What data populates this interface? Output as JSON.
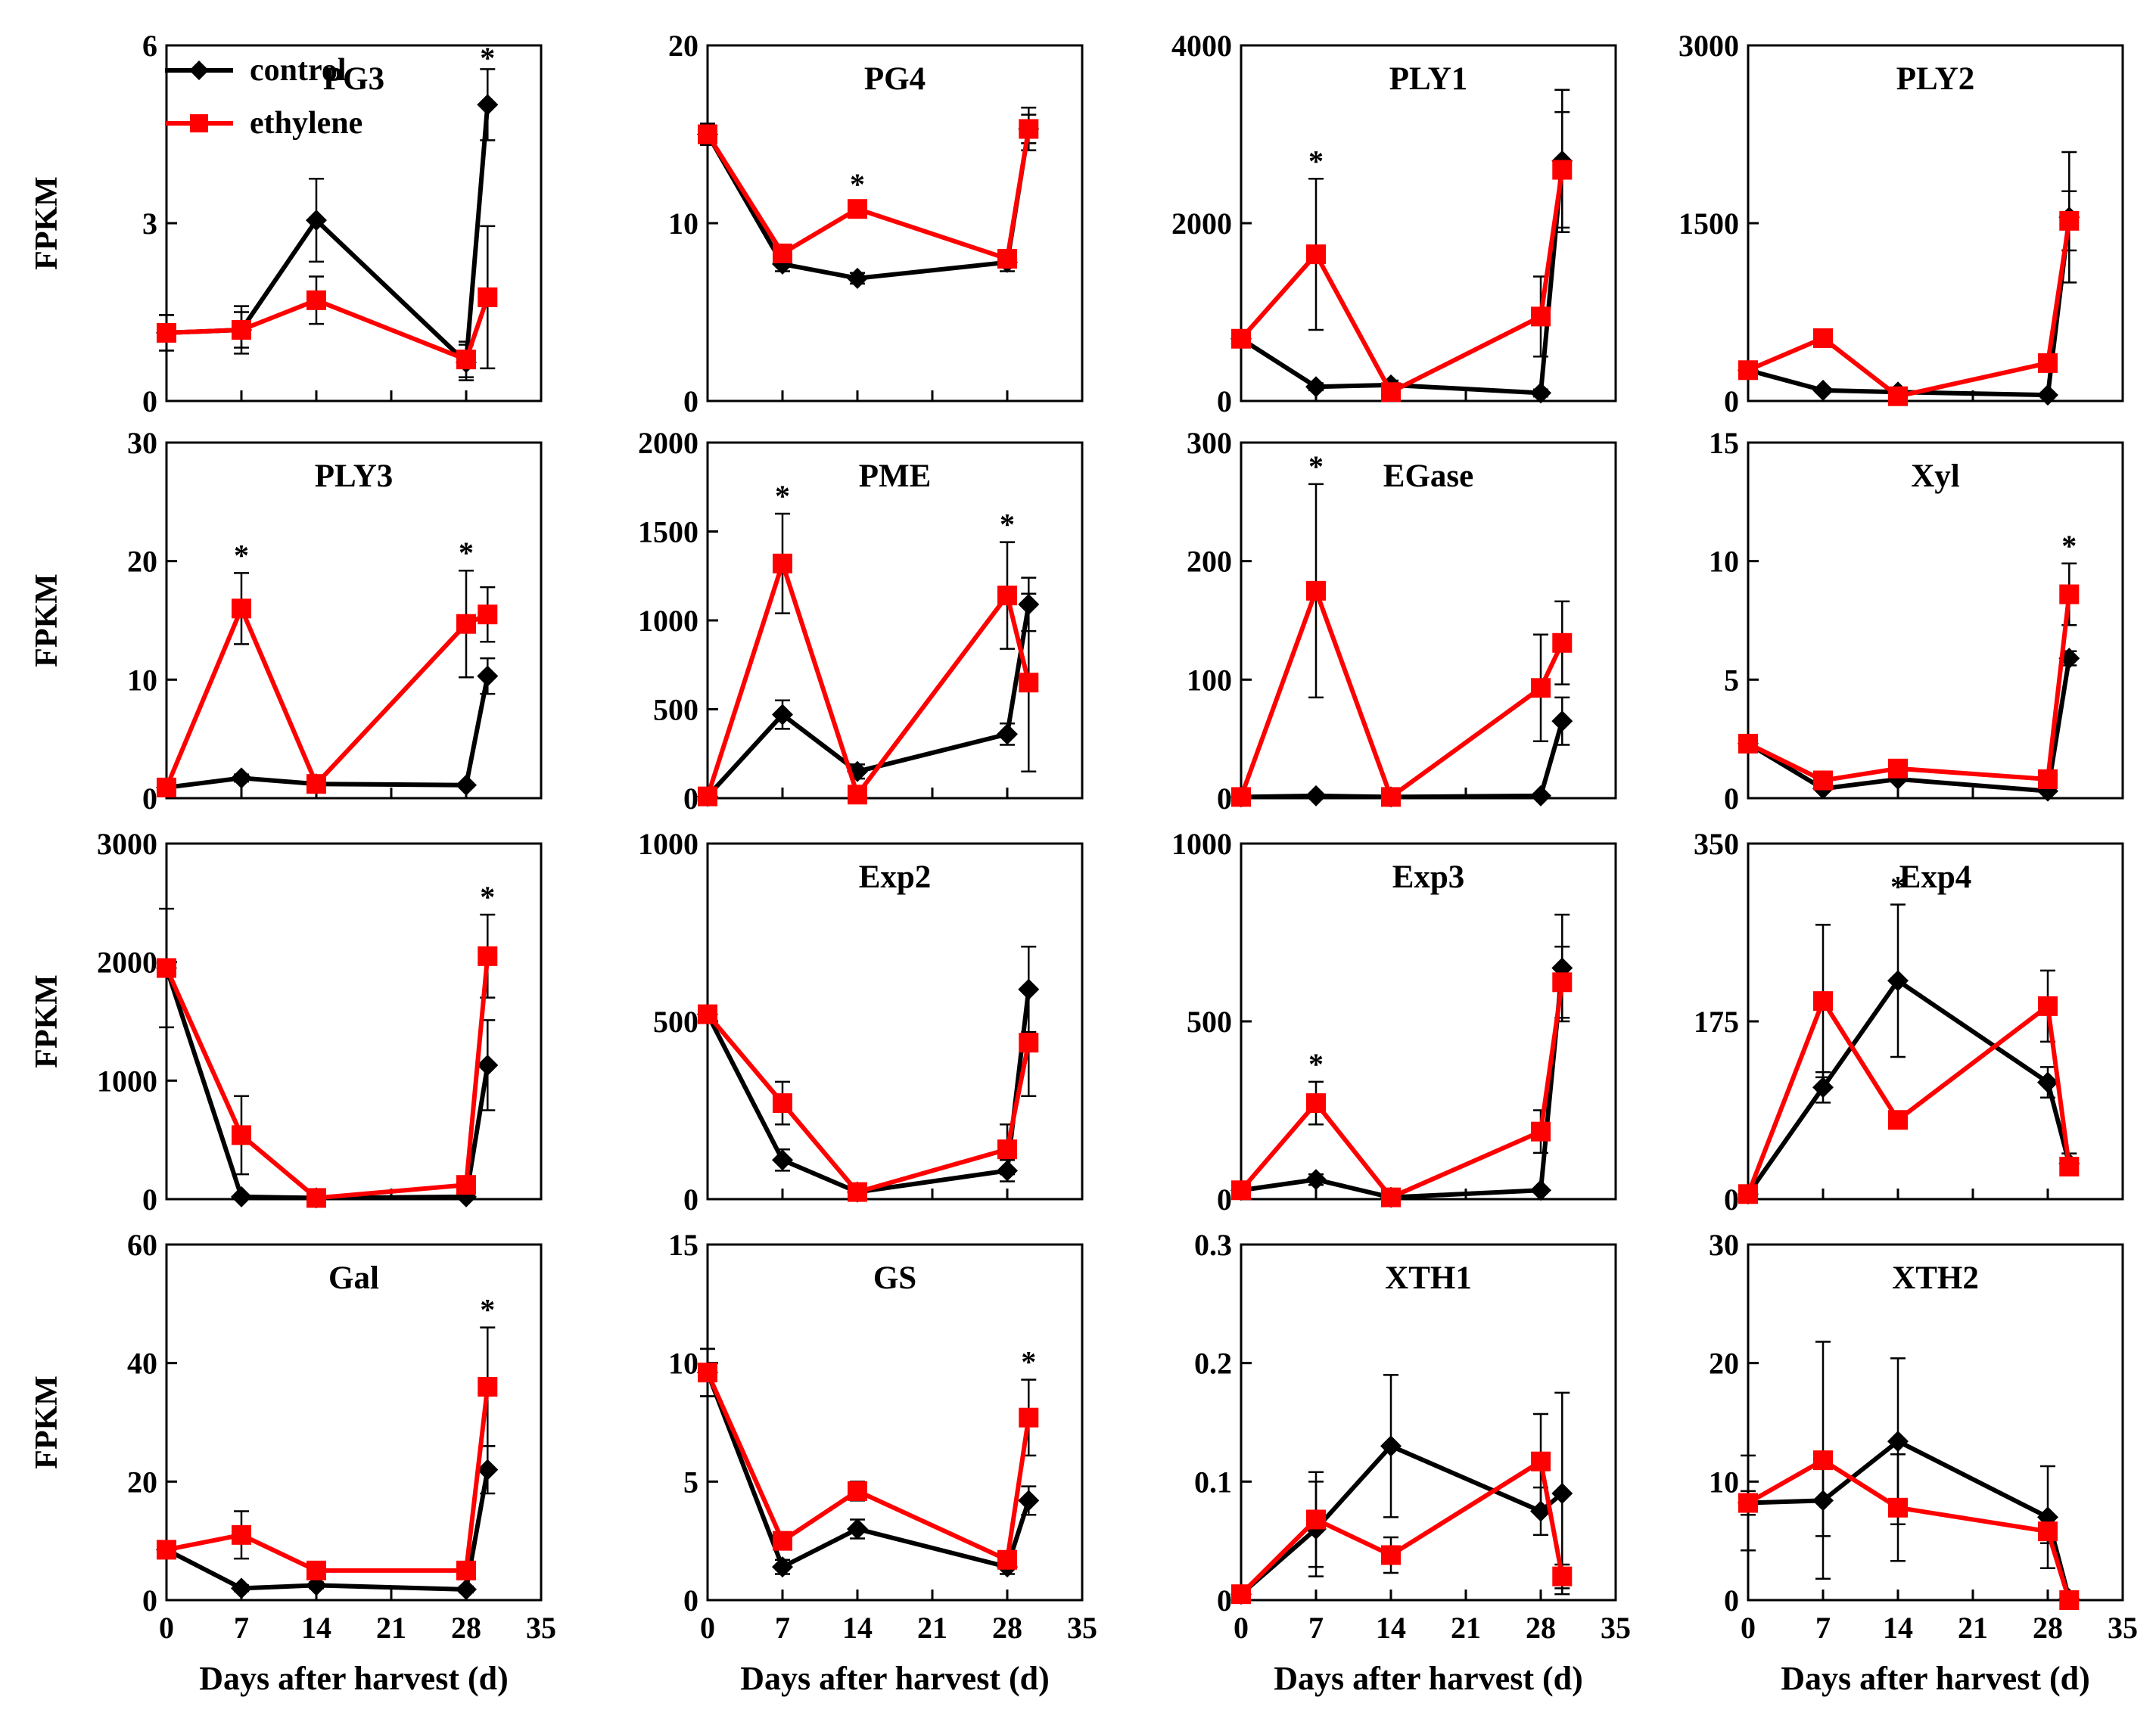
{
  "figure": {
    "legend": {
      "series": [
        {
          "name": "control",
          "color": "#000000",
          "marker": "diamond"
        },
        {
          "name": "ethylene",
          "color": "#ff0000",
          "marker": "square"
        }
      ]
    },
    "common_x_label": "Days after harvest (d)",
    "common_y_label": "FPKM",
    "x_ticks": [
      0,
      7,
      14,
      21,
      28,
      35
    ],
    "x_range": [
      0,
      35
    ],
    "sampling_days": [
      0,
      7,
      14,
      28,
      30
    ]
  },
  "chart_data": [
    {
      "type": "line",
      "title": "PG3",
      "ylabel": "FPKM",
      "ylim": [
        0,
        6
      ],
      "yticks": [
        0,
        3,
        6
      ],
      "series": [
        {
          "name": "control",
          "values": [
            1.15,
            1.2,
            3.05,
            0.65,
            5.0
          ],
          "err": [
            0.3,
            0.4,
            0.7,
            0.3,
            0.6
          ]
        },
        {
          "name": "ethylene",
          "values": [
            1.15,
            1.2,
            1.7,
            0.7,
            1.75
          ],
          "err": [
            0.3,
            0.3,
            0.4,
            0.3,
            1.2
          ]
        }
      ],
      "stars": [
        30
      ]
    },
    {
      "type": "line",
      "title": "PG4",
      "ylabel": "",
      "ylim": [
        0,
        20
      ],
      "yticks": [
        0,
        10,
        20
      ],
      "series": [
        {
          "name": "control",
          "values": [
            15,
            7.7,
            6.9,
            7.8,
            15.3
          ],
          "err": [
            0.6,
            0.4,
            0.3,
            0.5,
            1.2
          ]
        },
        {
          "name": "ethylene",
          "values": [
            15,
            8.3,
            10.8,
            8.0,
            15.3
          ],
          "err": [
            0.6,
            0.4,
            0.4,
            0.5,
            0.8
          ]
        }
      ],
      "stars": [
        14
      ]
    },
    {
      "type": "line",
      "title": "PLY1",
      "ylabel": "",
      "ylim": [
        0,
        4000
      ],
      "yticks": [
        0,
        2000,
        4000
      ],
      "series": [
        {
          "name": "control",
          "values": [
            700,
            160,
            180,
            90,
            2700
          ],
          "err": [
            60,
            40,
            50,
            40,
            800
          ]
        },
        {
          "name": "ethylene",
          "values": [
            700,
            1650,
            100,
            950,
            2600
          ],
          "err": [
            60,
            850,
            80,
            450,
            650
          ]
        }
      ],
      "stars": [
        7
      ]
    },
    {
      "type": "line",
      "title": "PLY2",
      "ylabel": "",
      "ylim": [
        0,
        3000
      ],
      "yticks": [
        0,
        1500,
        3000
      ],
      "series": [
        {
          "name": "control",
          "values": [
            260,
            90,
            75,
            50,
            1550
          ],
          "err": [
            40,
            20,
            20,
            20,
            550
          ]
        },
        {
          "name": "ethylene",
          "values": [
            260,
            530,
            40,
            320,
            1520
          ],
          "err": [
            40,
            50,
            20,
            50,
            250
          ]
        }
      ],
      "stars": []
    },
    {
      "type": "line",
      "title": "PLY3",
      "ylabel": "FPKM",
      "ylim": [
        0,
        30
      ],
      "yticks": [
        0,
        10,
        20,
        30
      ],
      "series": [
        {
          "name": "control",
          "values": [
            0.9,
            1.7,
            1.2,
            1.1,
            10.3
          ],
          "err": [
            0.2,
            0.3,
            0.2,
            0.2,
            1.5
          ]
        },
        {
          "name": "ethylene",
          "values": [
            0.9,
            16,
            1.2,
            14.7,
            15.5
          ],
          "err": [
            0.2,
            3,
            0.3,
            4.5,
            2.3
          ]
        }
      ],
      "stars": [
        7,
        28
      ]
    },
    {
      "type": "line",
      "title": "PME",
      "ylabel": "",
      "ylim": [
        0,
        2000
      ],
      "yticks": [
        0,
        500,
        1000,
        1500,
        2000
      ],
      "series": [
        {
          "name": "control",
          "values": [
            10,
            470,
            150,
            360,
            1090
          ],
          "err": [
            5,
            80,
            40,
            60,
            150
          ]
        },
        {
          "name": "ethylene",
          "values": [
            10,
            1320,
            20,
            1140,
            650
          ],
          "err": [
            5,
            280,
            20,
            300,
            500
          ]
        }
      ],
      "stars": [
        7,
        28
      ]
    },
    {
      "type": "line",
      "title": "EGase",
      "ylabel": "",
      "ylim": [
        0,
        300
      ],
      "yticks": [
        0,
        100,
        200,
        300
      ],
      "series": [
        {
          "name": "control",
          "values": [
            1,
            2,
            1,
            2,
            65
          ],
          "err": [
            1,
            1,
            1,
            1,
            20
          ]
        },
        {
          "name": "ethylene",
          "values": [
            1,
            175,
            1,
            93,
            131
          ],
          "err": [
            1,
            90,
            1,
            45,
            35
          ]
        }
      ],
      "stars": [
        7
      ]
    },
    {
      "type": "line",
      "title": "Xyl",
      "ylabel": "",
      "ylim": [
        0,
        15
      ],
      "yticks": [
        0,
        5,
        10,
        15
      ],
      "series": [
        {
          "name": "control",
          "values": [
            2.3,
            0.4,
            0.8,
            0.3,
            5.9
          ],
          "err": [
            0.2,
            0.1,
            0.1,
            0.1,
            0.3
          ]
        },
        {
          "name": "ethylene",
          "values": [
            2.3,
            0.75,
            1.25,
            0.8,
            8.6
          ],
          "err": [
            0.2,
            0.2,
            0.2,
            0.2,
            1.3
          ]
        }
      ],
      "stars": [
        30
      ]
    },
    {
      "type": "line",
      "title": "",
      "ylabel": "FPKM",
      "ylim": [
        0,
        3000
      ],
      "yticks": [
        0,
        1000,
        2000,
        3000
      ],
      "series": [
        {
          "name": "control",
          "values": [
            1950,
            20,
            10,
            20,
            1130
          ],
          "err": [
            500,
            20,
            10,
            20,
            380
          ]
        },
        {
          "name": "ethylene",
          "values": [
            1950,
            540,
            10,
            120,
            2050
          ],
          "err": [
            60,
            330,
            10,
            60,
            350
          ]
        }
      ],
      "stars": [
        30
      ]
    },
    {
      "type": "line",
      "title": "Exp2",
      "ylabel": "",
      "ylim": [
        0,
        1000
      ],
      "yticks": [
        0,
        500,
        1000
      ],
      "series": [
        {
          "name": "control",
          "values": [
            520,
            110,
            20,
            80,
            590
          ],
          "err": [
            20,
            30,
            10,
            30,
            120
          ]
        },
        {
          "name": "ethylene",
          "values": [
            520,
            270,
            20,
            140,
            440
          ],
          "err": [
            20,
            60,
            10,
            70,
            150
          ]
        }
      ],
      "stars": []
    },
    {
      "type": "line",
      "title": "Exp3",
      "ylabel": "",
      "ylim": [
        0,
        1000
      ],
      "yticks": [
        0,
        500,
        1000
      ],
      "series": [
        {
          "name": "control",
          "values": [
            25,
            55,
            5,
            25,
            650
          ],
          "err": [
            5,
            15,
            5,
            5,
            150
          ]
        },
        {
          "name": "ethylene",
          "values": [
            25,
            270,
            5,
            190,
            610
          ],
          "err": [
            5,
            60,
            5,
            60,
            100
          ]
        }
      ],
      "stars": [
        7
      ]
    },
    {
      "type": "line",
      "title": "Exp4",
      "ylabel": "",
      "ylim": [
        0,
        350
      ],
      "yticks": [
        0,
        175,
        350
      ],
      "series": [
        {
          "name": "control",
          "values": [
            5,
            110,
            215,
            115,
            35
          ],
          "err": [
            2,
            15,
            75,
            15,
            10
          ]
        },
        {
          "name": "ethylene",
          "values": [
            5,
            195,
            78,
            190,
            32
          ],
          "err": [
            2,
            75,
            5,
            35,
            8
          ]
        }
      ],
      "stars": [
        14
      ]
    },
    {
      "type": "line",
      "title": "Gal",
      "ylabel": "FPKM",
      "ylim": [
        0,
        60
      ],
      "yticks": [
        0,
        20,
        40,
        60
      ],
      "series": [
        {
          "name": "control",
          "values": [
            8.5,
            2,
            2.5,
            1.8,
            22
          ],
          "err": [
            1,
            0.5,
            0.5,
            0.5,
            4
          ]
        },
        {
          "name": "ethylene",
          "values": [
            8.5,
            11,
            5,
            5,
            36
          ],
          "err": [
            1,
            4,
            1,
            1,
            10
          ]
        }
      ],
      "stars": [
        30
      ]
    },
    {
      "type": "line",
      "title": "GS",
      "ylabel": "",
      "ylim": [
        0,
        15
      ],
      "yticks": [
        0,
        5,
        10,
        15
      ],
      "series": [
        {
          "name": "control",
          "values": [
            9.6,
            1.4,
            3.0,
            1.4,
            4.2
          ],
          "err": [
            1,
            0.3,
            0.4,
            0.3,
            0.6
          ]
        },
        {
          "name": "ethylene",
          "values": [
            9.6,
            2.5,
            4.6,
            1.7,
            7.7
          ],
          "err": [
            1,
            0.3,
            0.4,
            0.3,
            1.6
          ]
        }
      ],
      "stars": [
        30
      ]
    },
    {
      "type": "line",
      "title": "XTH1",
      "ylabel": "",
      "ylim": [
        0,
        0.3
      ],
      "yticks": [
        "0",
        "0.1",
        "0.2",
        "0.3"
      ],
      "series": [
        {
          "name": "control",
          "values": [
            0.005,
            0.06,
            0.13,
            0.075,
            0.09
          ],
          "err": [
            0.003,
            0.04,
            0.06,
            0.02,
            0.085
          ]
        },
        {
          "name": "ethylene",
          "values": [
            0.005,
            0.068,
            0.038,
            0.117,
            0.02
          ],
          "err": [
            0.003,
            0.04,
            0.015,
            0.04,
            0.01
          ]
        }
      ],
      "stars": []
    },
    {
      "type": "line",
      "title": "XTH2",
      "ylabel": "",
      "ylim": [
        0,
        30
      ],
      "yticks": [
        0,
        10,
        20,
        30
      ],
      "series": [
        {
          "name": "control",
          "values": [
            8.2,
            8.4,
            13.4,
            7.0,
            0.1
          ],
          "err": [
            4,
            3,
            7,
            4.3,
            0.5
          ]
        },
        {
          "name": "ethylene",
          "values": [
            8.2,
            11.8,
            7.8,
            5.8,
            0
          ],
          "err": [
            1,
            10,
            4.5,
            1,
            0.5
          ]
        }
      ],
      "stars": []
    }
  ]
}
